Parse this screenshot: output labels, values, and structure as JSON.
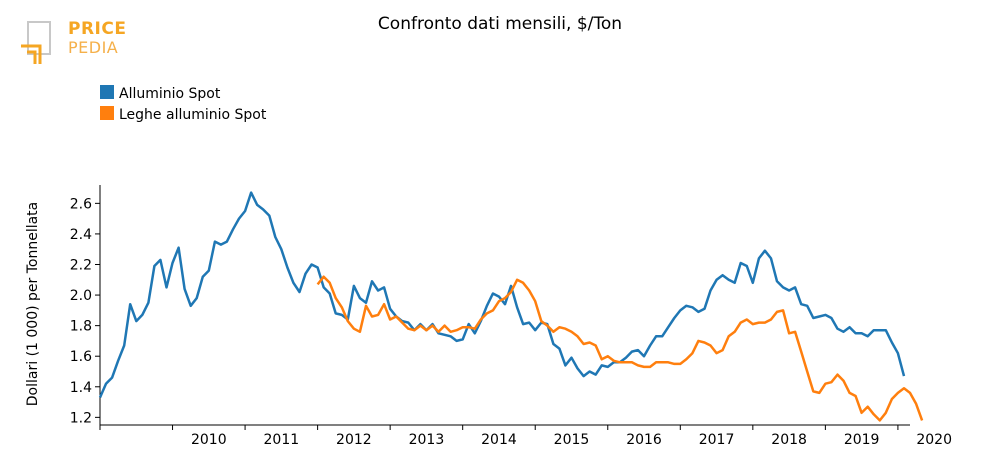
{
  "logo": {
    "line1": "PRICE",
    "line2": "PEDIA",
    "color": "#f5a623"
  },
  "chart_data": {
    "type": "line",
    "title": "Confronto dati mensili, $/Ton",
    "xlabel": "",
    "ylabel": "Dollari (1 000) per Tonnellata",
    "x_ticks": [
      "2010",
      "2011",
      "2012",
      "2013",
      "2014",
      "2015",
      "2016",
      "2017",
      "2018",
      "2019",
      "2020"
    ],
    "y_ticks": [
      "1.2",
      "1.4",
      "1.6",
      "1.8",
      "2.0",
      "2.2",
      "2.4",
      "2.6"
    ],
    "xlim": [
      "2009-01",
      "2020-03"
    ],
    "ylim": [
      1.15,
      2.72
    ],
    "grid": false,
    "legend_position": "top-left",
    "series": [
      {
        "name": "Alluminio Spot",
        "color": "#1f77b4",
        "start": "2009-01",
        "values": [
          1.33,
          1.42,
          1.46,
          1.57,
          1.67,
          1.94,
          1.83,
          1.87,
          1.95,
          2.19,
          2.23,
          2.05,
          2.21,
          2.31,
          2.04,
          1.93,
          1.98,
          2.12,
          2.16,
          2.35,
          2.33,
          2.35,
          2.43,
          2.5,
          2.55,
          2.67,
          2.59,
          2.56,
          2.52,
          2.38,
          2.3,
          2.18,
          2.08,
          2.02,
          2.14,
          2.2,
          2.18,
          2.05,
          2.01,
          1.88,
          1.87,
          1.84,
          2.06,
          1.98,
          1.95,
          2.09,
          2.03,
          2.05,
          1.91,
          1.86,
          1.83,
          1.82,
          1.77,
          1.81,
          1.77,
          1.81,
          1.75,
          1.74,
          1.73,
          1.7,
          1.71,
          1.81,
          1.75,
          1.83,
          1.93,
          2.01,
          1.99,
          1.94,
          2.06,
          1.92,
          1.81,
          1.82,
          1.77,
          1.82,
          1.81,
          1.68,
          1.65,
          1.54,
          1.59,
          1.52,
          1.47,
          1.5,
          1.48,
          1.54,
          1.53,
          1.56,
          1.56,
          1.59,
          1.63,
          1.64,
          1.6,
          1.67,
          1.73,
          1.73,
          1.79,
          1.85,
          1.9,
          1.93,
          1.92,
          1.89,
          1.91,
          2.03,
          2.1,
          2.13,
          2.1,
          2.08,
          2.21,
          2.19,
          2.08,
          2.24,
          2.29,
          2.24,
          2.09,
          2.05,
          2.03,
          2.05,
          1.94,
          1.93,
          1.85,
          1.86,
          1.87,
          1.85,
          1.78,
          1.76,
          1.79,
          1.75,
          1.75,
          1.73,
          1.77,
          1.77,
          1.77,
          1.69,
          1.62,
          1.47
        ]
      },
      {
        "name": "Leghe alluminio Spot",
        "color": "#ff7f0e",
        "start": "2012-01",
        "values": [
          2.07,
          2.12,
          2.08,
          1.98,
          1.92,
          1.83,
          1.78,
          1.76,
          1.93,
          1.86,
          1.87,
          1.94,
          1.84,
          1.86,
          1.82,
          1.78,
          1.77,
          1.8,
          1.77,
          1.8,
          1.76,
          1.8,
          1.76,
          1.77,
          1.79,
          1.79,
          1.78,
          1.84,
          1.88,
          1.9,
          1.96,
          1.98,
          2.02,
          2.1,
          2.08,
          2.03,
          1.96,
          1.83,
          1.8,
          1.76,
          1.79,
          1.78,
          1.76,
          1.73,
          1.68,
          1.69,
          1.67,
          1.58,
          1.6,
          1.57,
          1.56,
          1.56,
          1.56,
          1.54,
          1.53,
          1.53,
          1.56,
          1.56,
          1.56,
          1.55,
          1.55,
          1.58,
          1.62,
          1.7,
          1.69,
          1.67,
          1.62,
          1.64,
          1.73,
          1.76,
          1.82,
          1.84,
          1.81,
          1.82,
          1.82,
          1.84,
          1.89,
          1.9,
          1.75,
          1.76,
          1.63,
          1.5,
          1.37,
          1.36,
          1.42,
          1.43,
          1.48,
          1.44,
          1.36,
          1.34,
          1.23,
          1.27,
          1.22,
          1.18,
          1.23,
          1.32,
          1.36,
          1.39,
          1.36,
          1.29,
          1.18
        ]
      }
    ]
  }
}
